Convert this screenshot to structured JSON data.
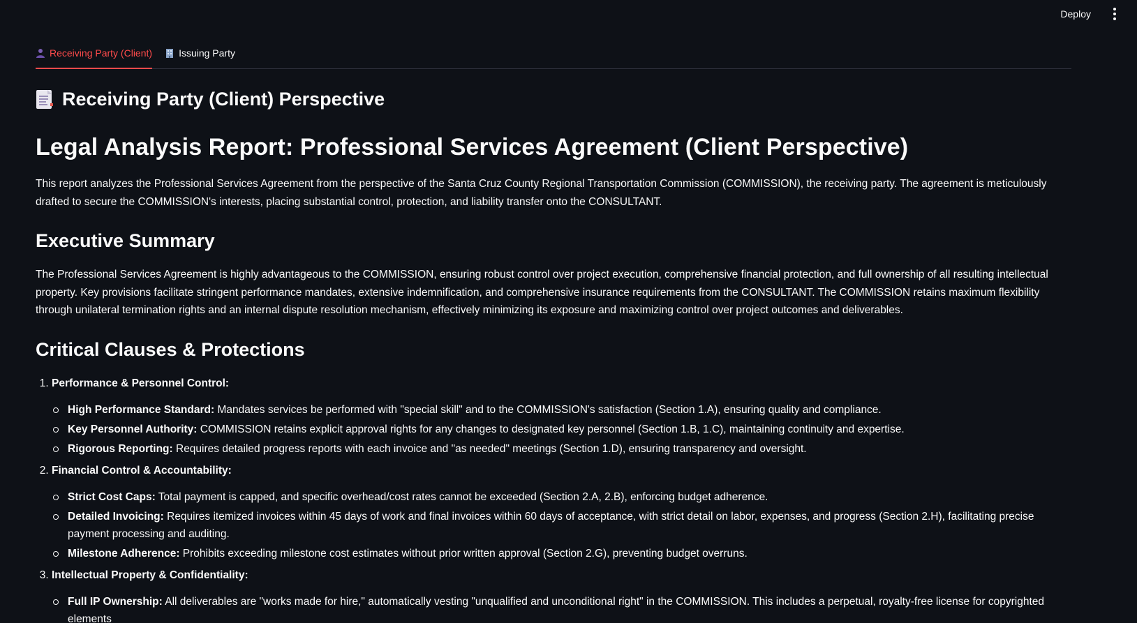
{
  "topbar": {
    "deploy_label": "Deploy",
    "menu_icon": "kebab-menu-icon"
  },
  "tabs": [
    {
      "label": "Receiving Party (Client)",
      "icon": "person-icon",
      "active": true
    },
    {
      "label": "Issuing Party",
      "icon": "building-icon",
      "active": false
    }
  ],
  "colors": {
    "accent": "#ff4b4b",
    "background": "#0e1117",
    "text": "#fafafa"
  },
  "subheader": {
    "icon": "document-icon",
    "title": "Receiving Party (Client) Perspective"
  },
  "report": {
    "title": "Legal Analysis Report: Professional Services Agreement (Client Perspective)",
    "intro": "This report analyzes the Professional Services Agreement from the perspective of the Santa Cruz County Regional Transportation Commission (COMMISSION), the receiving party. The agreement is meticulously drafted to secure the COMMISSION's interests, placing substantial control, protection, and liability transfer onto the CONSULTANT.",
    "executive_summary_heading": "Executive Summary",
    "executive_summary": "The Professional Services Agreement is highly advantageous to the COMMISSION, ensuring robust control over project execution, comprehensive financial protection, and full ownership of all resulting intellectual property. Key provisions facilitate stringent performance mandates, extensive indemnification, and comprehensive insurance requirements from the CONSULTANT. The COMMISSION retains maximum flexibility through unilateral termination rights and an internal dispute resolution mechanism, effectively minimizing its exposure and maximizing control over project outcomes and deliverables.",
    "critical_heading": "Critical Clauses & Protections",
    "clauses": [
      {
        "title": "Performance & Personnel Control:",
        "items": [
          {
            "label": "High Performance Standard:",
            "text": " Mandates services be performed with \"special skill\" and to the COMMISSION's satisfaction (Section 1.A), ensuring quality and compliance."
          },
          {
            "label": "Key Personnel Authority:",
            "text": " COMMISSION retains explicit approval rights for any changes to designated key personnel (Section 1.B, 1.C), maintaining continuity and expertise."
          },
          {
            "label": "Rigorous Reporting:",
            "text": " Requires detailed progress reports with each invoice and \"as needed\" meetings (Section 1.D), ensuring transparency and oversight."
          }
        ]
      },
      {
        "title": "Financial Control & Accountability:",
        "items": [
          {
            "label": "Strict Cost Caps:",
            "text": " Total payment is capped, and specific overhead/cost rates cannot be exceeded (Section 2.A, 2.B), enforcing budget adherence."
          },
          {
            "label": "Detailed Invoicing:",
            "text": " Requires itemized invoices within 45 days of work and final invoices within 60 days of acceptance, with strict detail on labor, expenses, and progress (Section 2.H), facilitating precise payment processing and auditing."
          },
          {
            "label": "Milestone Adherence:",
            "text": " Prohibits exceeding milestone cost estimates without prior written approval (Section 2.G), preventing budget overruns."
          }
        ]
      },
      {
        "title": "Intellectual Property & Confidentiality:",
        "items": [
          {
            "label": "Full IP Ownership:",
            "text": " All deliverables are \"works made for hire,\" automatically vesting \"unqualified and unconditional right\" in the COMMISSION. This includes a perpetual, royalty-free license for copyrighted elements"
          }
        ]
      }
    ]
  }
}
